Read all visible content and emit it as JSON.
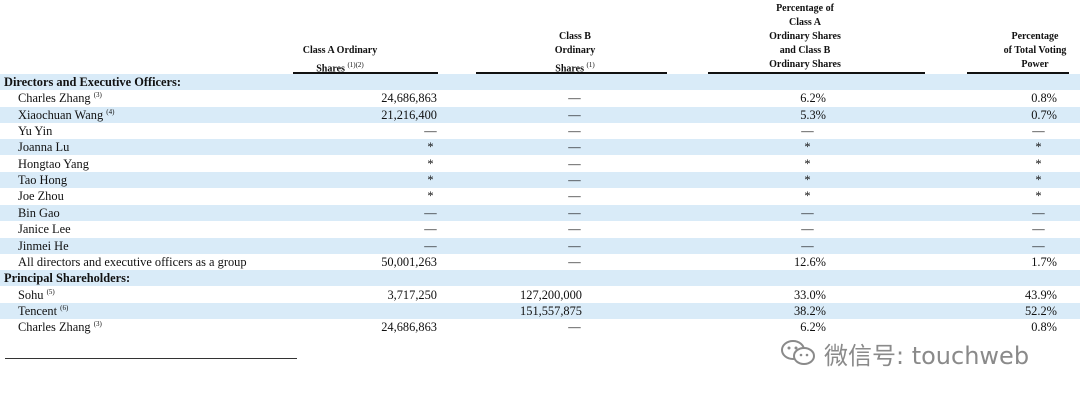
{
  "headers": {
    "col1": "Class A Ordinary\nShares",
    "col1_sup": "(1)(2)",
    "col2": "Class B\nOrdinary\nShares",
    "col2_sup": "(1)",
    "col3": "Percentage of\nClass A\nOrdinary Shares\nand Class B\nOrdinary Shares",
    "col4": "Percentage\nof Total Voting\nPower"
  },
  "rows": [
    {
      "type": "section",
      "label": "Directors and Executive Officers:"
    },
    {
      "label": "Charles Zhang",
      "sup": "(3)",
      "a": "24,686,863",
      "b": "—",
      "pct": "6.2%",
      "vote": "0.8%"
    },
    {
      "label": "Xiaochuan Wang",
      "sup": "(4)",
      "a": "21,216,400",
      "b": "—",
      "pct": "5.3%",
      "vote": "0.7%"
    },
    {
      "label": "Yu Yin",
      "sup": "",
      "a": "—",
      "b": "—",
      "pct": "—",
      "vote": "—"
    },
    {
      "label": "Joanna Lu",
      "sup": "",
      "a": "*",
      "b": "—",
      "pct": "*",
      "vote": "*"
    },
    {
      "label": "Hongtao Yang",
      "sup": "",
      "a": "*",
      "b": "—",
      "pct": "*",
      "vote": "*"
    },
    {
      "label": "Tao Hong",
      "sup": "",
      "a": "*",
      "b": "—",
      "pct": "*",
      "vote": "*"
    },
    {
      "label": "Joe Zhou",
      "sup": "",
      "a": "*",
      "b": "—",
      "pct": "*",
      "vote": "*"
    },
    {
      "label": "Bin Gao",
      "sup": "",
      "a": "—",
      "b": "—",
      "pct": "—",
      "vote": "—"
    },
    {
      "label": "Janice Lee",
      "sup": "",
      "a": "—",
      "b": "—",
      "pct": "—",
      "vote": "—"
    },
    {
      "label": "Jinmei He",
      "sup": "",
      "a": "—",
      "b": "—",
      "pct": "—",
      "vote": "—"
    },
    {
      "label": "All directors and executive officers as a group",
      "sup": "",
      "a": "50,001,263",
      "b": "—",
      "pct": "12.6%",
      "vote": "1.7%"
    },
    {
      "type": "section",
      "label": "Principal Shareholders:"
    },
    {
      "label": "Sohu",
      "sup": "(5)",
      "a": "3,717,250",
      "b": "127,200,000",
      "pct": "33.0%",
      "vote": "43.9%"
    },
    {
      "label": "Tencent",
      "sup": "(6)",
      "a": "",
      "b": "151,557,875",
      "pct": "38.2%",
      "vote": "52.2%"
    },
    {
      "label": "Charles Zhang",
      "sup": "(3)",
      "a": "24,686,863",
      "b": "—",
      "pct": "6.2%",
      "vote": "0.8%"
    }
  ],
  "watermark": "微信号: touchweb",
  "colors": {
    "row_shade": "#d9ebf8",
    "text": "#111111",
    "watermark": "#8a8a8a"
  }
}
